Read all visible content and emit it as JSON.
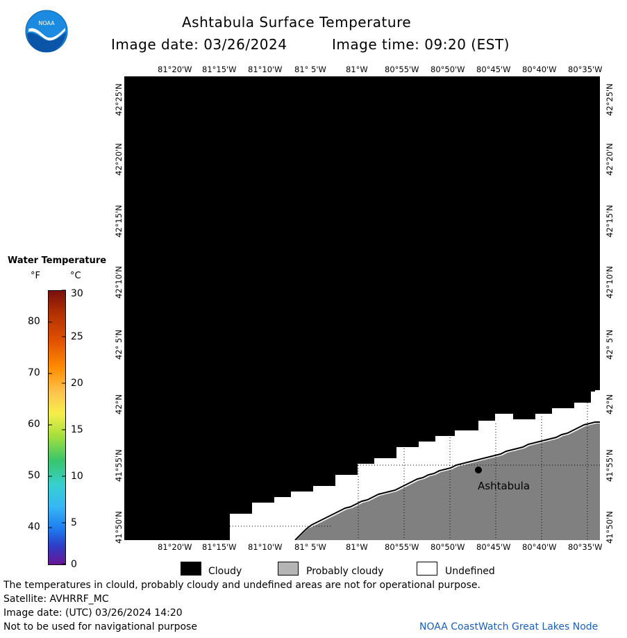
{
  "header": {
    "title": "Ashtabula Surface Temperature",
    "image_date_label": "Image date: 03/26/2024",
    "image_time_label": "Image time: 09:20 (EST)"
  },
  "logo": {
    "text": "NOAA",
    "color": "#0f6fc6"
  },
  "map": {
    "lon_labels": [
      "81°20'W",
      "81°15'W",
      "81°10'W",
      "81° 5'W",
      "81°W",
      "80°55'W",
      "80°50'W",
      "80°45'W",
      "80°40'W",
      "80°35'W"
    ],
    "lat_labels": [
      "42°25'N",
      "42°20'N",
      "42°15'N",
      "42°10'N",
      "42° 5'N",
      "42°N",
      "41°55'N",
      "41°50'N"
    ],
    "city": "Ashtabula",
    "colors": {
      "cloudy": "#000000",
      "probably_cloudy": "#808080",
      "undefined": "#ffffff"
    }
  },
  "colorbar": {
    "title": "Water Temperature",
    "unit_f": "°F",
    "unit_c": "°C",
    "f_ticks": [
      "80",
      "70",
      "60",
      "50",
      "40"
    ],
    "c_ticks": [
      "30",
      "25",
      "20",
      "15",
      "10",
      "5",
      "0"
    ]
  },
  "legend": {
    "cloudy": "Cloudy",
    "probably_cloudy": "Probably cloudy",
    "undefined": "Undefined"
  },
  "footer": {
    "note": "The temperatures in clould, probably cloudy and undefined areas are not for operational purpose.",
    "satellite": "Satellite: AVHRRF_MC",
    "utc_date": "Image date: (UTC) 03/26/2024  14:20",
    "nav_warning": "Not to be used for navigational purpose",
    "credit": "NOAA CoastWatch Great Lakes Node"
  }
}
